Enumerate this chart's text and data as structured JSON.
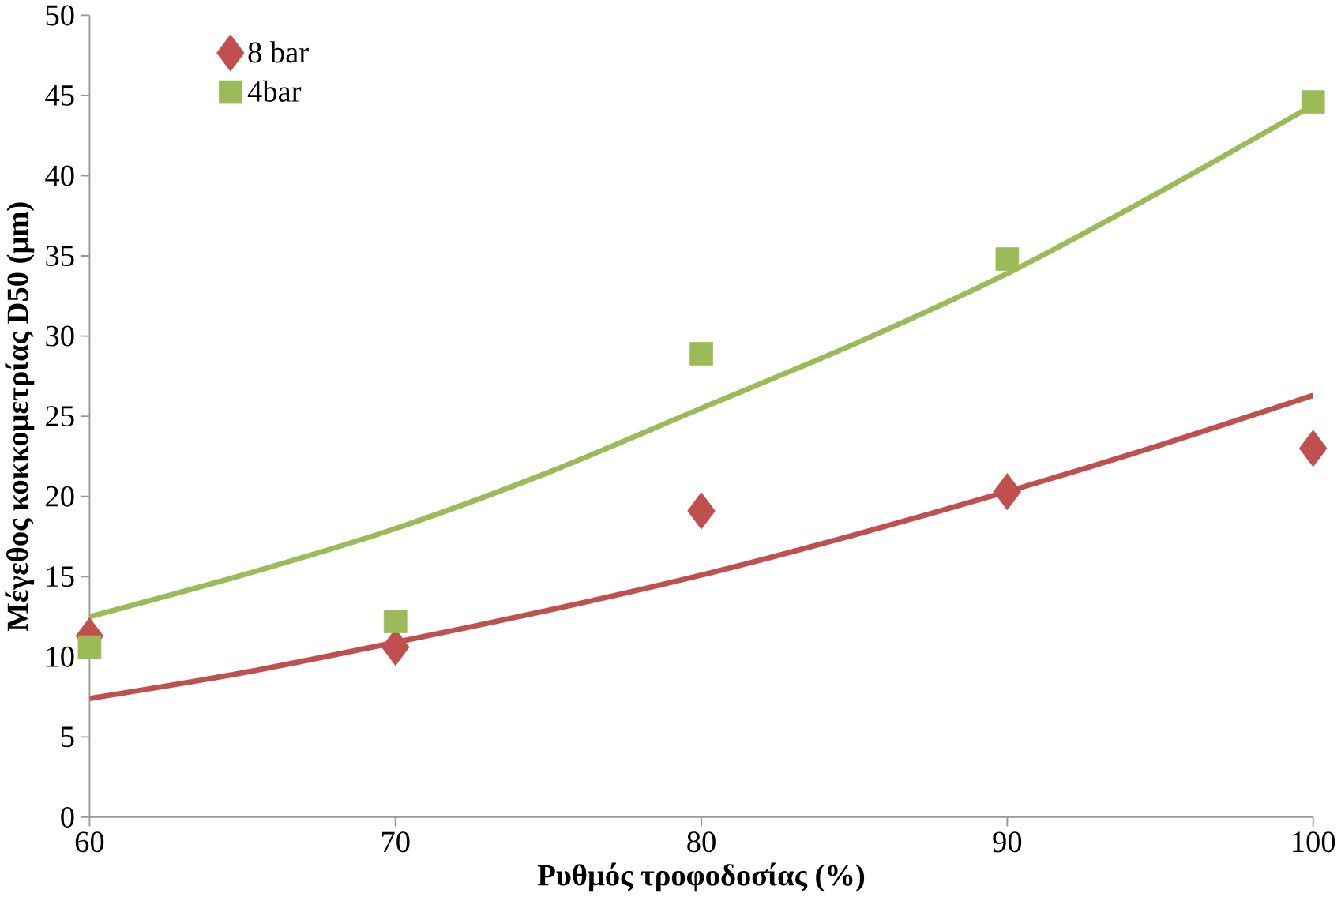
{
  "chart_data": {
    "type": "scatter",
    "xlabel": "Ρυθμός τροφοδοσίας (%)",
    "ylabel": "Μέγεθος κοκκομετρίας D50 (μm)",
    "x": [
      60,
      70,
      80,
      90,
      100
    ],
    "series": [
      {
        "name": "8 bar",
        "color": "#c0504d",
        "marker": "diamond",
        "values": [
          11.3,
          10.6,
          19.1,
          20.3,
          23.0
        ]
      },
      {
        "name": "4bar",
        "color": "#9bbb59",
        "marker": "square",
        "values": [
          10.6,
          12.2,
          28.9,
          34.8,
          44.6
        ]
      },
      {
        "type": "line",
        "color": "#c0504d",
        "marker": "none",
        "x": [
          60,
          65,
          70,
          75,
          80,
          85,
          90,
          95,
          100
        ],
        "values": [
          7.4,
          9.0,
          10.9,
          12.9,
          15.1,
          17.6,
          20.3,
          23.2,
          26.3
        ]
      },
      {
        "type": "line",
        "color": "#9bbb59",
        "marker": "none",
        "x": [
          60,
          65,
          70,
          75,
          80,
          85,
          90,
          95,
          100
        ],
        "values": [
          12.5,
          15.1,
          18.0,
          21.5,
          25.5,
          29.5,
          33.9,
          39.0,
          44.4
        ]
      }
    ],
    "xlim": [
      60,
      100
    ],
    "xticks": [
      60,
      70,
      80,
      90,
      100
    ],
    "ylim": [
      0,
      50
    ],
    "yticks": [
      0,
      5,
      10,
      15,
      20,
      25,
      30,
      35,
      40,
      45,
      50
    ],
    "grid": false,
    "legend": "top left"
  }
}
